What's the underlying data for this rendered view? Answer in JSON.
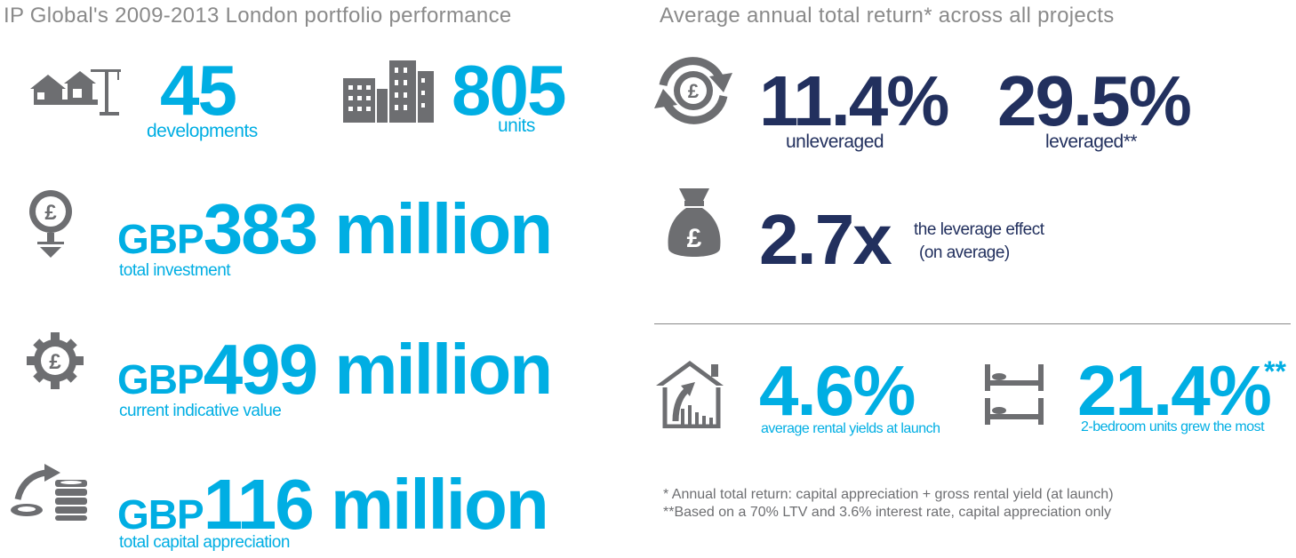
{
  "left": {
    "heading": "IP Global's 2009-2013 London portfolio performance",
    "developments": {
      "value": "45",
      "label": "developments",
      "icon": "houses-crane-icon"
    },
    "units": {
      "value": "805",
      "label": "units",
      "icon": "buildings-icon"
    },
    "investment": {
      "prefix": "GBP",
      "value": "383 million",
      "label": "total investment",
      "icon": "pound-coin-down-icon"
    },
    "indicative": {
      "prefix": "GBP",
      "value": "499 million",
      "label": "current indicative value",
      "icon": "pound-gear-icon"
    },
    "appreciation": {
      "prefix": "GBP",
      "value": "116 million",
      "label": "total capital appreciation",
      "icon": "coins-growth-icon"
    }
  },
  "right": {
    "heading": "Average annual total return* across all projects",
    "unleveraged": {
      "value": "11.4%",
      "label": "unleveraged",
      "icon": "pound-cycle-icon"
    },
    "leveraged": {
      "value": "29.5%",
      "label": "leveraged**"
    },
    "leverage": {
      "value": "2.7x",
      "label_line1": "the leverage effect",
      "label_line2": "(on average)",
      "icon": "money-bag-icon"
    },
    "rental": {
      "value": "4.6%",
      "label": "average rental yields at launch",
      "icon": "house-arrow-icon"
    },
    "bedroom": {
      "value": "21.4%",
      "suffix": "**",
      "label": "2-bedroom units grew the most",
      "icon": "beds-icon"
    },
    "footnote1": "* Annual total return: capital appreciation + gross rental yield (at launch)",
    "footnote2": "**Based on a 70% LTV and 3.6% interest rate, capital appreciation only"
  },
  "colors": {
    "cyan": "#00aee3",
    "navy": "#22305e",
    "icon_gray": "#6d6e71",
    "heading_gray": "#8a8a8a"
  }
}
